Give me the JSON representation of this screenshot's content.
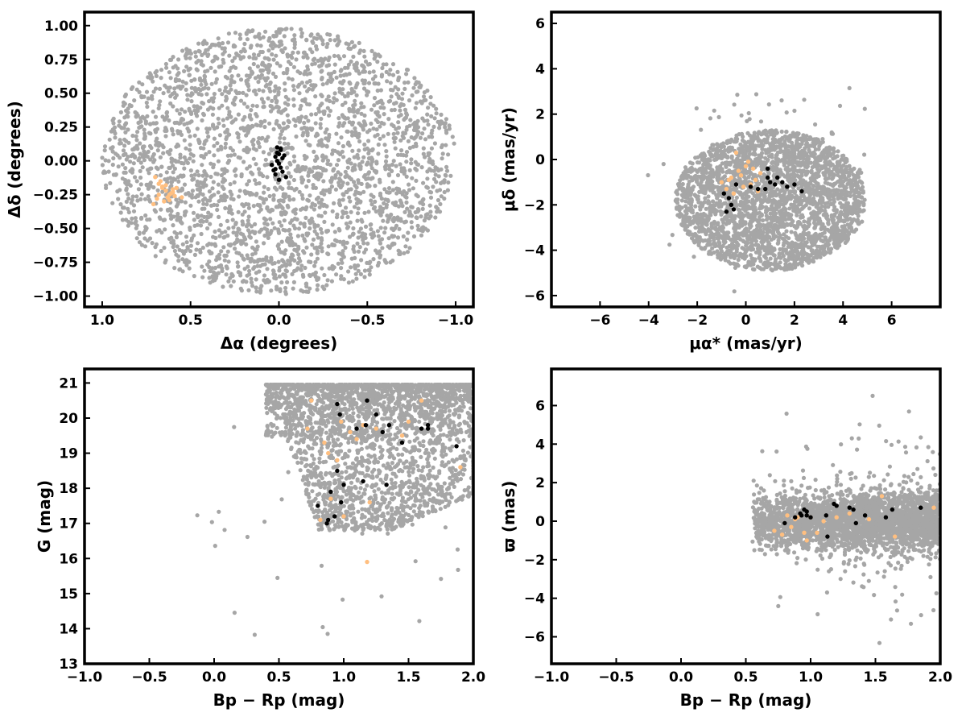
{
  "colors": {
    "field": "#a6a6a6",
    "black_cluster": "#000000",
    "orange_cluster": "#ffbf80"
  },
  "chart_data": [
    {
      "type": "scatter",
      "id": "sky",
      "xlabel": "Δα (degrees)",
      "ylabel": "Δδ (degrees)",
      "xlim": [
        1.1,
        -1.1
      ],
      "ylim": [
        -1.08,
        1.1
      ],
      "xticks": [
        1.0,
        0.5,
        0.0,
        -0.5,
        -1.0
      ],
      "xtick_labels": [
        "1.0",
        "0.5",
        "0.0",
        "−0.5",
        "−1.0"
      ],
      "yticks": [
        1.0,
        0.75,
        0.5,
        0.25,
        0.0,
        -0.25,
        -0.5,
        -0.75,
        -1.0
      ],
      "ytick_labels": [
        "1.00",
        "0.75",
        "0.50",
        "0.25",
        "0.00",
        "−0.25",
        "−0.50",
        "−0.75",
        "−1.00"
      ],
      "grid": false,
      "series": [
        {
          "role": "field",
          "color": "#a6a6a6",
          "count": 2800,
          "distribution": "uniform disk of radius 1.0 deg centred at (0,0)",
          "x": [],
          "y": []
        },
        {
          "role": "cluster",
          "color": "#ffbf80",
          "x": [
            0.7,
            0.68,
            0.66,
            0.64,
            0.62,
            0.6,
            0.58,
            0.69,
            0.65,
            0.63,
            0.61,
            0.67,
            0.55,
            0.71,
            0.64,
            0.6,
            0.68,
            0.62,
            0.66,
            0.59
          ],
          "y": [
            -0.12,
            -0.17,
            -0.2,
            -0.22,
            -0.25,
            -0.23,
            -0.2,
            -0.28,
            -0.3,
            -0.27,
            -0.24,
            -0.15,
            -0.27,
            -0.32,
            -0.18,
            -0.21,
            -0.25,
            -0.29,
            -0.19,
            -0.26
          ]
        },
        {
          "role": "cluster",
          "color": "#000000",
          "x": [
            0.01,
            -0.01,
            0.0,
            0.02,
            -0.02,
            0.01,
            0.0,
            -0.01,
            0.03,
            -0.03,
            0.02,
            0.0,
            -0.04,
            -0.02,
            0.01,
            0.04,
            -0.01,
            0.02
          ],
          "y": [
            0.1,
            0.08,
            0.05,
            0.03,
            0.02,
            0.0,
            -0.02,
            -0.05,
            -0.07,
            0.04,
            -0.1,
            -0.14,
            -0.12,
            -0.08,
            0.06,
            -0.03,
            0.09,
            -0.06
          ]
        }
      ]
    },
    {
      "type": "scatter",
      "id": "proper-motion",
      "xlabel": "μα* (mas/yr)",
      "ylabel": "μδ (mas/yr)",
      "xlim": [
        -8,
        8
      ],
      "ylim": [
        -6.5,
        6.5
      ],
      "xticks": [
        -6,
        -4,
        -2,
        0,
        2,
        4,
        6
      ],
      "xtick_labels": [
        "−6",
        "−4",
        "−2",
        "0",
        "2",
        "4",
        "6"
      ],
      "yticks": [
        6,
        4,
        2,
        0,
        -2,
        -4,
        -6
      ],
      "ytick_labels": [
        "6",
        "4",
        "2",
        "0",
        "−2",
        "−4",
        "−6"
      ],
      "grid": false,
      "series": [
        {
          "role": "field",
          "color": "#a6a6a6",
          "count": 2800,
          "distribution": "elliptical cloud centred near (1.0, -1.8)",
          "x": [],
          "y": []
        },
        {
          "role": "cluster",
          "color": "#ffbf80",
          "x": [
            -1.0,
            -0.6,
            -0.3,
            0.0,
            0.3,
            0.6,
            -0.8,
            -0.5,
            -0.1,
            0.2,
            0.5,
            -0.4,
            0.1,
            -0.7,
            0.4,
            -0.2
          ],
          "y": [
            -1.0,
            -0.8,
            -0.5,
            -0.3,
            -0.4,
            -0.6,
            -1.3,
            -1.5,
            -1.2,
            -1.1,
            -1.4,
            0.3,
            -0.1,
            -0.9,
            -0.9,
            -0.7
          ]
        },
        {
          "role": "cluster",
          "color": "#000000",
          "x": [
            -0.9,
            -0.7,
            -0.6,
            -0.8,
            -0.5,
            0.2,
            0.8,
            1.0,
            1.2,
            1.5,
            1.7,
            2.0,
            2.3,
            0.9,
            1.3,
            -0.4,
            0.5,
            0.9
          ],
          "y": [
            -1.5,
            -1.7,
            -2.0,
            -2.3,
            -2.2,
            -1.2,
            -1.3,
            -1.0,
            -1.1,
            -1.0,
            -1.2,
            -1.1,
            -1.4,
            -0.4,
            -0.8,
            -1.1,
            -1.3,
            -0.8
          ]
        }
      ]
    },
    {
      "type": "scatter",
      "id": "cmd",
      "xlabel": "Bp − Rp (mag)",
      "ylabel": "G (mag)",
      "xlim": [
        -1.0,
        2.0
      ],
      "ylim": [
        13.0,
        21.4
      ],
      "y_inverted": false,
      "xticks": [
        -1.0,
        -0.5,
        0.0,
        0.5,
        1.0,
        1.5,
        2.0
      ],
      "xtick_labels": [
        "−1.0",
        "−0.5",
        "0.0",
        "0.5",
        "1.0",
        "1.5",
        "2.0"
      ],
      "yticks": [
        13,
        14,
        15,
        16,
        17,
        18,
        19,
        20,
        21
      ],
      "ytick_labels": [
        "13",
        "14",
        "15",
        "16",
        "17",
        "18",
        "19",
        "20",
        "21"
      ],
      "grid": false,
      "series": [
        {
          "role": "field",
          "color": "#a6a6a6",
          "count": 2800,
          "distribution": "dense wedge G≈17–21 at colour 0.4–2.0, widening to faint end",
          "x": [],
          "y": []
        },
        {
          "role": "cluster",
          "color": "#ffbf80",
          "x": [
            0.75,
            0.72,
            0.85,
            0.95,
            0.98,
            1.05,
            1.1,
            1.15,
            1.25,
            1.45,
            1.5,
            1.6,
            1.9,
            0.9,
            0.82,
            1.0,
            1.2,
            0.88,
            1.18
          ],
          "y": [
            20.5,
            19.7,
            19.3,
            18.8,
            19.9,
            19.6,
            19.4,
            19.8,
            19.7,
            19.5,
            19.9,
            20.5,
            18.6,
            17.7,
            17.1,
            17.2,
            17.6,
            19.0,
            15.9
          ]
        },
        {
          "role": "cluster",
          "color": "#000000",
          "x": [
            0.95,
            0.97,
            1.1,
            1.17,
            1.18,
            1.25,
            1.3,
            1.35,
            1.45,
            1.6,
            1.65,
            1.87,
            0.95,
            1.0,
            0.9,
            0.87,
            0.93,
            0.98,
            1.15,
            1.33,
            0.8,
            0.88,
            1.65
          ],
          "y": [
            20.4,
            20.1,
            19.7,
            19.8,
            20.5,
            20.1,
            19.6,
            19.8,
            19.3,
            19.7,
            19.8,
            19.2,
            18.5,
            18.1,
            17.9,
            17.0,
            17.2,
            17.6,
            18.2,
            18.1,
            17.5,
            17.1,
            19.7
          ]
        }
      ]
    },
    {
      "type": "scatter",
      "id": "parallax",
      "xlabel": "Bp − Rp (mag)",
      "ylabel": "ϖ (mas)",
      "xlim": [
        -1.0,
        2.0
      ],
      "ylim": [
        -7.4,
        7.9
      ],
      "xticks": [
        -1.0,
        -0.5,
        0.0,
        0.5,
        1.0,
        1.5,
        2.0
      ],
      "xtick_labels": [
        "−1.0",
        "−0.5",
        "0.0",
        "0.5",
        "1.0",
        "1.5",
        "2.0"
      ],
      "yticks": [
        6,
        4,
        2,
        0,
        -2,
        -4,
        -6
      ],
      "ytick_labels": [
        "6",
        "4",
        "2",
        "0",
        "−2",
        "−4",
        "−6"
      ],
      "grid": false,
      "series": [
        {
          "role": "field",
          "color": "#a6a6a6",
          "count": 2800,
          "distribution": "horizontal band ϖ≈0±1 from colour 0.5 to 2.0",
          "x": [],
          "y": []
        },
        {
          "role": "cluster",
          "color": "#ffbf80",
          "x": [
            0.72,
            0.78,
            0.82,
            0.85,
            0.9,
            0.95,
            0.97,
            1.05,
            1.1,
            1.2,
            1.3,
            1.45,
            1.55,
            1.65,
            1.95,
            0.88,
            1.0
          ],
          "y": [
            -0.5,
            -0.7,
            0.3,
            -0.3,
            0.2,
            -0.6,
            -1.0,
            -0.6,
            0.0,
            0.2,
            0.4,
            0.1,
            1.3,
            -0.8,
            0.7,
            0.1,
            0.2
          ]
        },
        {
          "role": "cluster",
          "color": "#000000",
          "x": [
            0.8,
            0.88,
            0.92,
            0.95,
            0.97,
            1.0,
            1.12,
            1.13,
            1.18,
            1.2,
            1.3,
            1.33,
            1.35,
            1.42,
            1.58,
            1.63,
            1.85,
            0.97,
            0.93
          ],
          "y": [
            -0.1,
            0.2,
            0.4,
            0.6,
            0.3,
            0.2,
            0.3,
            -0.8,
            0.9,
            0.8,
            0.7,
            0.6,
            -0.1,
            0.3,
            0.2,
            0.6,
            0.7,
            0.5,
            0.3
          ]
        }
      ]
    }
  ]
}
